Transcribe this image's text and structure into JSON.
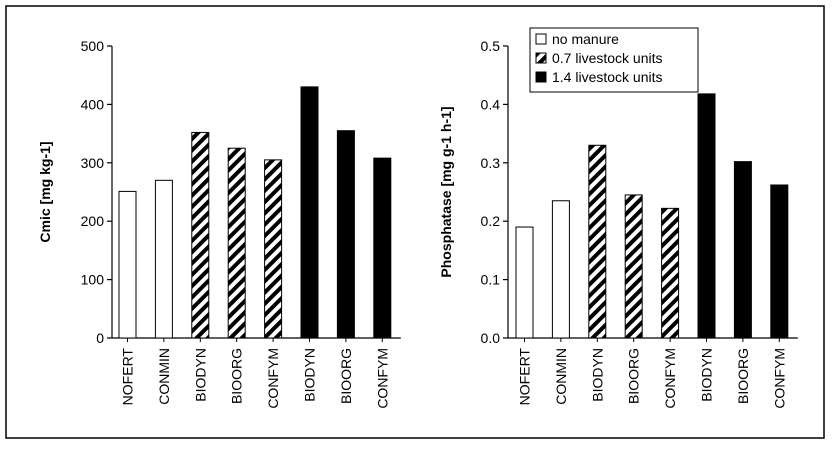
{
  "chart_data": [
    {
      "type": "bar",
      "ylabel": "Cmic [mg kg-1]",
      "xlabel": "",
      "ylim": [
        0,
        500
      ],
      "yticks": [
        "0",
        "100",
        "200",
        "300",
        "400",
        "500"
      ],
      "ytick_values": [
        0,
        100,
        200,
        300,
        400,
        500
      ],
      "categories": [
        "NOFERT",
        "CONMIN",
        "BIODYN",
        "BIOORG",
        "CONFYM",
        "BIODYN",
        "BIOORG",
        "CONFYM"
      ],
      "values": [
        251,
        270,
        352,
        325,
        305,
        430,
        355,
        308
      ],
      "groups": [
        "none",
        "none",
        "hatch",
        "hatch",
        "hatch",
        "solid",
        "solid",
        "solid"
      ],
      "grid": false
    },
    {
      "type": "bar",
      "ylabel": "Phosphatase [mg g-1 h-1]",
      "xlabel": "",
      "ylim": [
        0,
        0.5
      ],
      "yticks": [
        "0.0",
        "0.1",
        "0.2",
        "0.3",
        "0.4",
        "0.5"
      ],
      "ytick_values": [
        0,
        0.1,
        0.2,
        0.3,
        0.4,
        0.5
      ],
      "categories": [
        "NOFERT",
        "CONMIN",
        "BIODYN",
        "BIOORG",
        "CONFYM",
        "BIODYN",
        "BIOORG",
        "CONFYM"
      ],
      "values": [
        0.19,
        0.235,
        0.33,
        0.245,
        0.222,
        0.418,
        0.302,
        0.262
      ],
      "groups": [
        "none",
        "none",
        "hatch",
        "hatch",
        "hatch",
        "solid",
        "solid",
        "solid"
      ],
      "grid": false,
      "legend_position": "top-left",
      "legend": [
        {
          "label": "no manure",
          "style": "none"
        },
        {
          "label": "0.7 livestock units",
          "style": "hatch"
        },
        {
          "label": "1.4 livestock units",
          "style": "solid"
        }
      ]
    }
  ]
}
